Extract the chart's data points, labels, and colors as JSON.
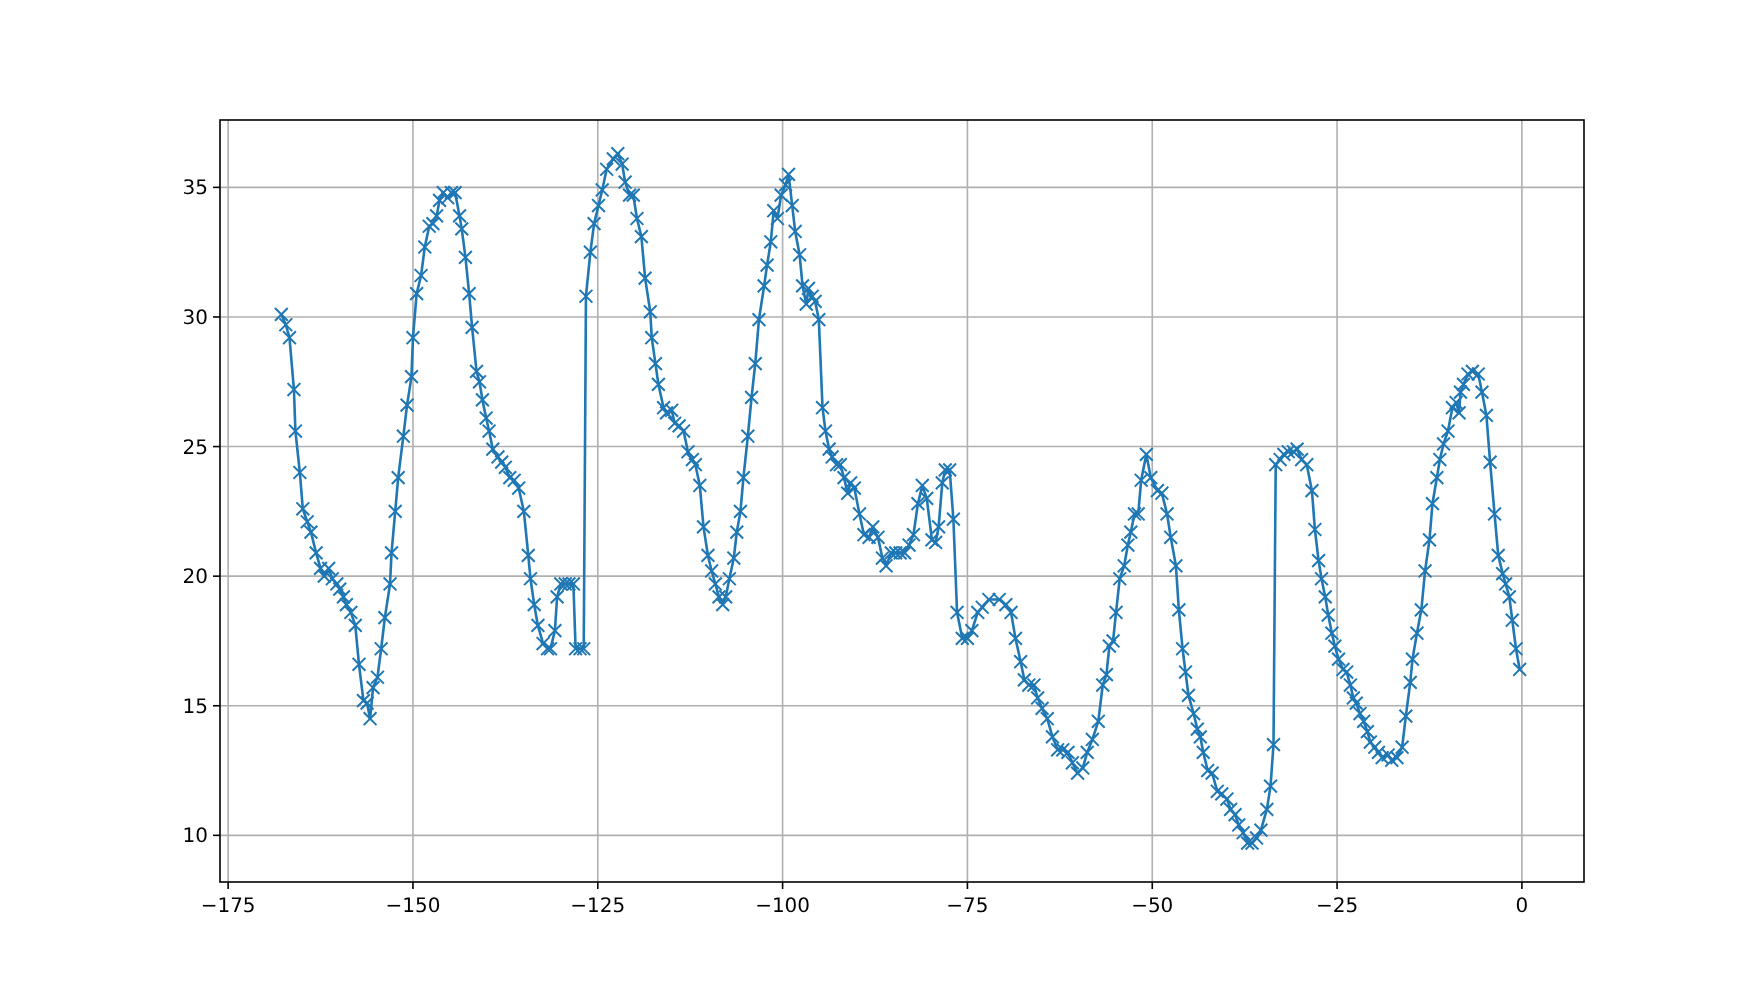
{
  "chart_data": {
    "type": "line",
    "marker": "cross",
    "grid": true,
    "xlim": [
      -176.1,
      8.4
    ],
    "ylim": [
      8.2,
      37.6
    ],
    "xticks": [
      {
        "value": -175,
        "label": "−175"
      },
      {
        "value": -150,
        "label": "−150"
      },
      {
        "value": -125,
        "label": "−125"
      },
      {
        "value": -100,
        "label": "−100"
      },
      {
        "value": -75,
        "label": "−75"
      },
      {
        "value": -50,
        "label": "−50"
      },
      {
        "value": -25,
        "label": "−25"
      },
      0
    ],
    "yticks": [
      10,
      15,
      20,
      25,
      30,
      35
    ],
    "series": [
      {
        "color": "#1f77b4",
        "x": [
          -167.8,
          -167.2,
          -166.7,
          -166.1,
          -165.9,
          -165.3,
          -164.9,
          -164.3,
          -163.8,
          -163.1,
          -162.5,
          -162.0,
          -161.4,
          -160.9,
          -160.3,
          -159.9,
          -159.4,
          -159.0,
          -158.4,
          -157.8,
          -157.3,
          -156.7,
          -156.2,
          -155.8,
          -155.4,
          -154.8,
          -154.3,
          -153.8,
          -153.1,
          -152.9,
          -152.4,
          -152.0,
          -151.3,
          -150.8,
          -150.2,
          -150.0,
          -149.5,
          -148.9,
          -148.4,
          -147.8,
          -147.3,
          -146.8,
          -146.4,
          -145.9,
          -145.3,
          -144.8,
          -144.3,
          -143.7,
          -143.4,
          -142.9,
          -142.4,
          -142.0,
          -141.4,
          -141.0,
          -140.6,
          -140.1,
          -139.7,
          -139.2,
          -138.5,
          -138.0,
          -137.5,
          -136.9,
          -136.3,
          -135.7,
          -135.0,
          -134.4,
          -134.1,
          -133.6,
          -133.1,
          -132.4,
          -131.8,
          -131.4,
          -130.8,
          -130.5,
          -130.0,
          -129.4,
          -128.9,
          -128.3,
          -128.0,
          -127.4,
          -126.9,
          -126.6,
          -126.0,
          -125.5,
          -124.9,
          -124.4,
          -123.8,
          -122.9,
          -122.3,
          -121.7,
          -121.3,
          -120.7,
          -120.2,
          -119.7,
          -119.1,
          -118.6,
          -117.9,
          -117.7,
          -117.2,
          -116.8,
          -116.1,
          -115.7,
          -115.0,
          -114.6,
          -114.0,
          -113.4,
          -112.8,
          -112.2,
          -111.8,
          -111.2,
          -110.7,
          -110.1,
          -109.6,
          -109.1,
          -108.6,
          -108.1,
          -107.7,
          -107.2,
          -106.6,
          -106.2,
          -105.7,
          -105.3,
          -104.7,
          -104.2,
          -103.7,
          -103.2,
          -102.5,
          -102.1,
          -101.6,
          -101.2,
          -100.7,
          -100.2,
          -99.6,
          -99.2,
          -98.7,
          -98.3,
          -97.7,
          -97.3,
          -96.8,
          -96.5,
          -96.0,
          -95.6,
          -95.1,
          -94.6,
          -94.2,
          -93.7,
          -93.3,
          -92.7,
          -92.2,
          -91.7,
          -91.2,
          -90.8,
          -90.3,
          -89.6,
          -89.0,
          -88.3,
          -87.8,
          -87.1,
          -86.5,
          -86.0,
          -85.3,
          -84.7,
          -84.1,
          -83.5,
          -82.9,
          -82.3,
          -81.7,
          -81.1,
          -80.5,
          -79.8,
          -79.3,
          -78.9,
          -78.4,
          -78.0,
          -77.4,
          -76.9,
          -76.4,
          -75.7,
          -75.0,
          -74.4,
          -73.6,
          -73.0,
          -72.1,
          -70.7,
          -69.8,
          -69.1,
          -68.5,
          -67.8,
          -67.3,
          -66.7,
          -66.0,
          -65.5,
          -64.9,
          -64.2,
          -63.5,
          -62.8,
          -62.1,
          -61.4,
          -60.8,
          -60.1,
          -59.4,
          -58.8,
          -58.1,
          -57.3,
          -56.7,
          -56.2,
          -55.8,
          -55.3,
          -54.9,
          -54.4,
          -53.8,
          -53.3,
          -52.9,
          -52.4,
          -51.9,
          -51.5,
          -50.8,
          -50.2,
          -49.3,
          -48.7,
          -48.0,
          -47.5,
          -46.8,
          -46.4,
          -45.9,
          -45.5,
          -45.1,
          -44.4,
          -43.9,
          -43.5,
          -43.1,
          -42.5,
          -41.9,
          -41.2,
          -40.6,
          -39.9,
          -39.4,
          -38.8,
          -38.3,
          -37.7,
          -37.1,
          -36.5,
          -35.9,
          -35.3,
          -34.5,
          -34.0,
          -33.6,
          -33.3,
          -32.7,
          -32.2,
          -31.6,
          -30.9,
          -30.4,
          -29.8,
          -29.1,
          -28.4,
          -28.0,
          -27.5,
          -27.1,
          -26.6,
          -26.2,
          -25.7,
          -25.3,
          -24.8,
          -24.2,
          -23.7,
          -23.2,
          -22.8,
          -22.4,
          -21.9,
          -21.4,
          -20.9,
          -20.5,
          -19.9,
          -19.4,
          -18.9,
          -18.1,
          -17.6,
          -16.9,
          -16.2,
          -15.7,
          -15.1,
          -14.8,
          -14.2,
          -13.6,
          -13.1,
          -12.5,
          -12.1,
          -11.5,
          -11.1,
          -10.6,
          -10.0,
          -9.4,
          -8.9,
          -8.5,
          -8.3,
          -7.9,
          -7.3,
          -6.7,
          -5.9,
          -5.4,
          -4.8,
          -4.3,
          -3.7,
          -3.2,
          -2.6,
          -2.2,
          -1.7,
          -1.3,
          -0.8,
          -0.3
        ],
        "values": [
          30.1,
          29.7,
          29.2,
          27.2,
          25.6,
          24.0,
          22.6,
          22.1,
          21.7,
          20.9,
          20.3,
          20.0,
          20.3,
          19.9,
          19.7,
          19.5,
          19.2,
          18.9,
          18.6,
          18.1,
          16.6,
          15.2,
          15.1,
          14.5,
          15.7,
          16.1,
          17.2,
          18.4,
          19.7,
          20.9,
          22.5,
          23.8,
          25.4,
          26.6,
          27.7,
          29.2,
          30.9,
          31.6,
          32.7,
          33.5,
          33.6,
          33.9,
          34.5,
          34.8,
          34.6,
          34.8,
          34.8,
          33.9,
          33.4,
          32.3,
          30.9,
          29.6,
          27.9,
          27.5,
          26.8,
          26.1,
          25.6,
          24.9,
          24.6,
          24.4,
          24.2,
          23.8,
          23.7,
          23.4,
          22.5,
          20.8,
          19.9,
          18.9,
          18.1,
          17.4,
          17.2,
          17.2,
          17.9,
          19.2,
          19.7,
          19.7,
          19.7,
          19.7,
          17.2,
          17.2,
          17.2,
          30.8,
          32.5,
          33.6,
          34.3,
          34.9,
          35.7,
          36.1,
          36.3,
          35.9,
          35.2,
          34.7,
          34.7,
          33.8,
          33.1,
          31.5,
          30.2,
          29.2,
          28.2,
          27.4,
          26.5,
          26.3,
          26.4,
          25.9,
          25.8,
          25.6,
          24.8,
          24.5,
          24.3,
          23.5,
          21.9,
          20.8,
          20.2,
          19.7,
          19.2,
          18.9,
          19.2,
          19.9,
          20.7,
          21.7,
          22.5,
          23.8,
          25.4,
          26.9,
          28.2,
          29.9,
          31.2,
          32.0,
          32.9,
          34.1,
          33.8,
          34.7,
          35.1,
          35.5,
          34.3,
          33.3,
          32.4,
          31.2,
          30.5,
          31.1,
          30.8,
          30.6,
          29.9,
          26.5,
          25.6,
          24.9,
          24.6,
          24.3,
          24.3,
          23.8,
          23.2,
          23.6,
          23.4,
          22.4,
          21.6,
          21.5,
          21.9,
          21.5,
          20.7,
          20.4,
          20.9,
          20.9,
          20.9,
          20.9,
          21.2,
          21.6,
          22.8,
          23.5,
          23.0,
          21.4,
          21.3,
          21.9,
          23.6,
          24.1,
          24.1,
          22.2,
          18.6,
          17.6,
          17.6,
          17.9,
          18.6,
          18.8,
          19.1,
          19.1,
          18.9,
          18.6,
          17.6,
          16.7,
          16.0,
          15.8,
          15.8,
          15.3,
          14.9,
          14.5,
          13.8,
          13.3,
          13.3,
          13.2,
          12.8,
          12.4,
          12.6,
          13.2,
          13.7,
          14.4,
          15.8,
          16.2,
          17.3,
          17.5,
          18.6,
          19.9,
          20.4,
          21.2,
          21.7,
          22.4,
          22.4,
          23.7,
          24.7,
          23.8,
          23.3,
          23.2,
          22.4,
          21.5,
          20.4,
          18.7,
          17.2,
          16.3,
          15.4,
          14.7,
          14.1,
          13.8,
          13.2,
          12.5,
          12.4,
          11.7,
          11.6,
          11.4,
          11.0,
          10.8,
          10.4,
          10.1,
          9.7,
          9.7,
          9.9,
          10.2,
          11.0,
          11.9,
          13.5,
          24.3,
          24.5,
          24.7,
          24.8,
          24.8,
          24.9,
          24.5,
          24.3,
          23.3,
          21.8,
          20.6,
          19.9,
          19.2,
          18.5,
          17.8,
          17.3,
          16.8,
          16.4,
          16.3,
          15.8,
          15.3,
          15.1,
          14.7,
          14.4,
          14.0,
          13.6,
          13.4,
          13.2,
          13.0,
          13.1,
          12.9,
          13.0,
          13.4,
          14.6,
          15.9,
          16.8,
          17.8,
          18.7,
          20.2,
          21.4,
          22.8,
          23.8,
          24.5,
          25.1,
          25.6,
          26.5,
          26.7,
          26.3,
          27.1,
          27.4,
          27.8,
          27.9,
          27.8,
          27.1,
          26.2,
          24.4,
          22.4,
          20.8,
          20.1,
          19.7,
          19.2,
          18.3,
          17.2,
          16.4
        ]
      }
    ]
  }
}
